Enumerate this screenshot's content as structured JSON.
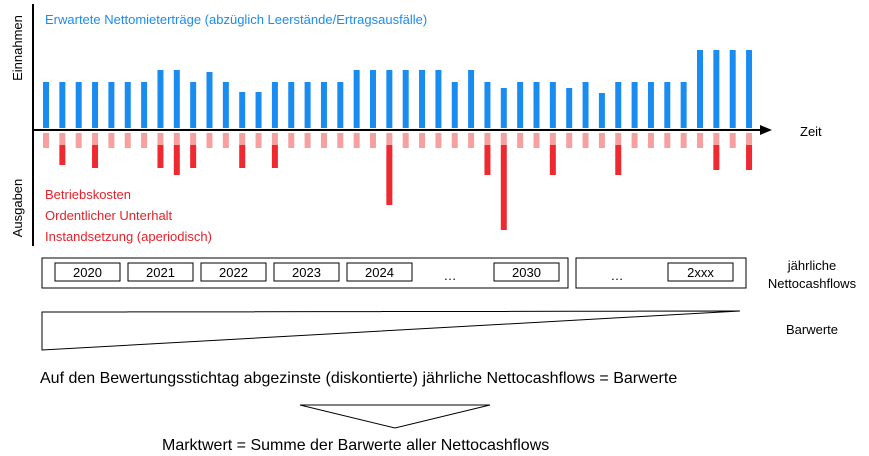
{
  "axes": {
    "y_top": "Einnahmen",
    "y_bottom": "Ausgaben",
    "x": "Zeit"
  },
  "income_label": "Erwartete Nettomieterträge (abzüglich Leerstände/Ertragsausfälle)",
  "expense_labels": [
    "Betriebskosten",
    "Ordentlicher Unterhalt",
    "Instandsetzung (aperiodisch)"
  ],
  "years": [
    "2020",
    "2021",
    "2022",
    "2023",
    "2024",
    "…",
    "2030",
    "…",
    "2xxx"
  ],
  "cashflow_label": [
    "jährliche",
    "Nettocashflows"
  ],
  "present_value_label": "Barwerte",
  "discount_text": "Auf den Bewertungsstichtag abgezinste (diskontierte) jährliche Nettocashflows = Barwerte",
  "market_value_text": "Marktwert = Summe der Barwerte aller Nettocashflows"
}
